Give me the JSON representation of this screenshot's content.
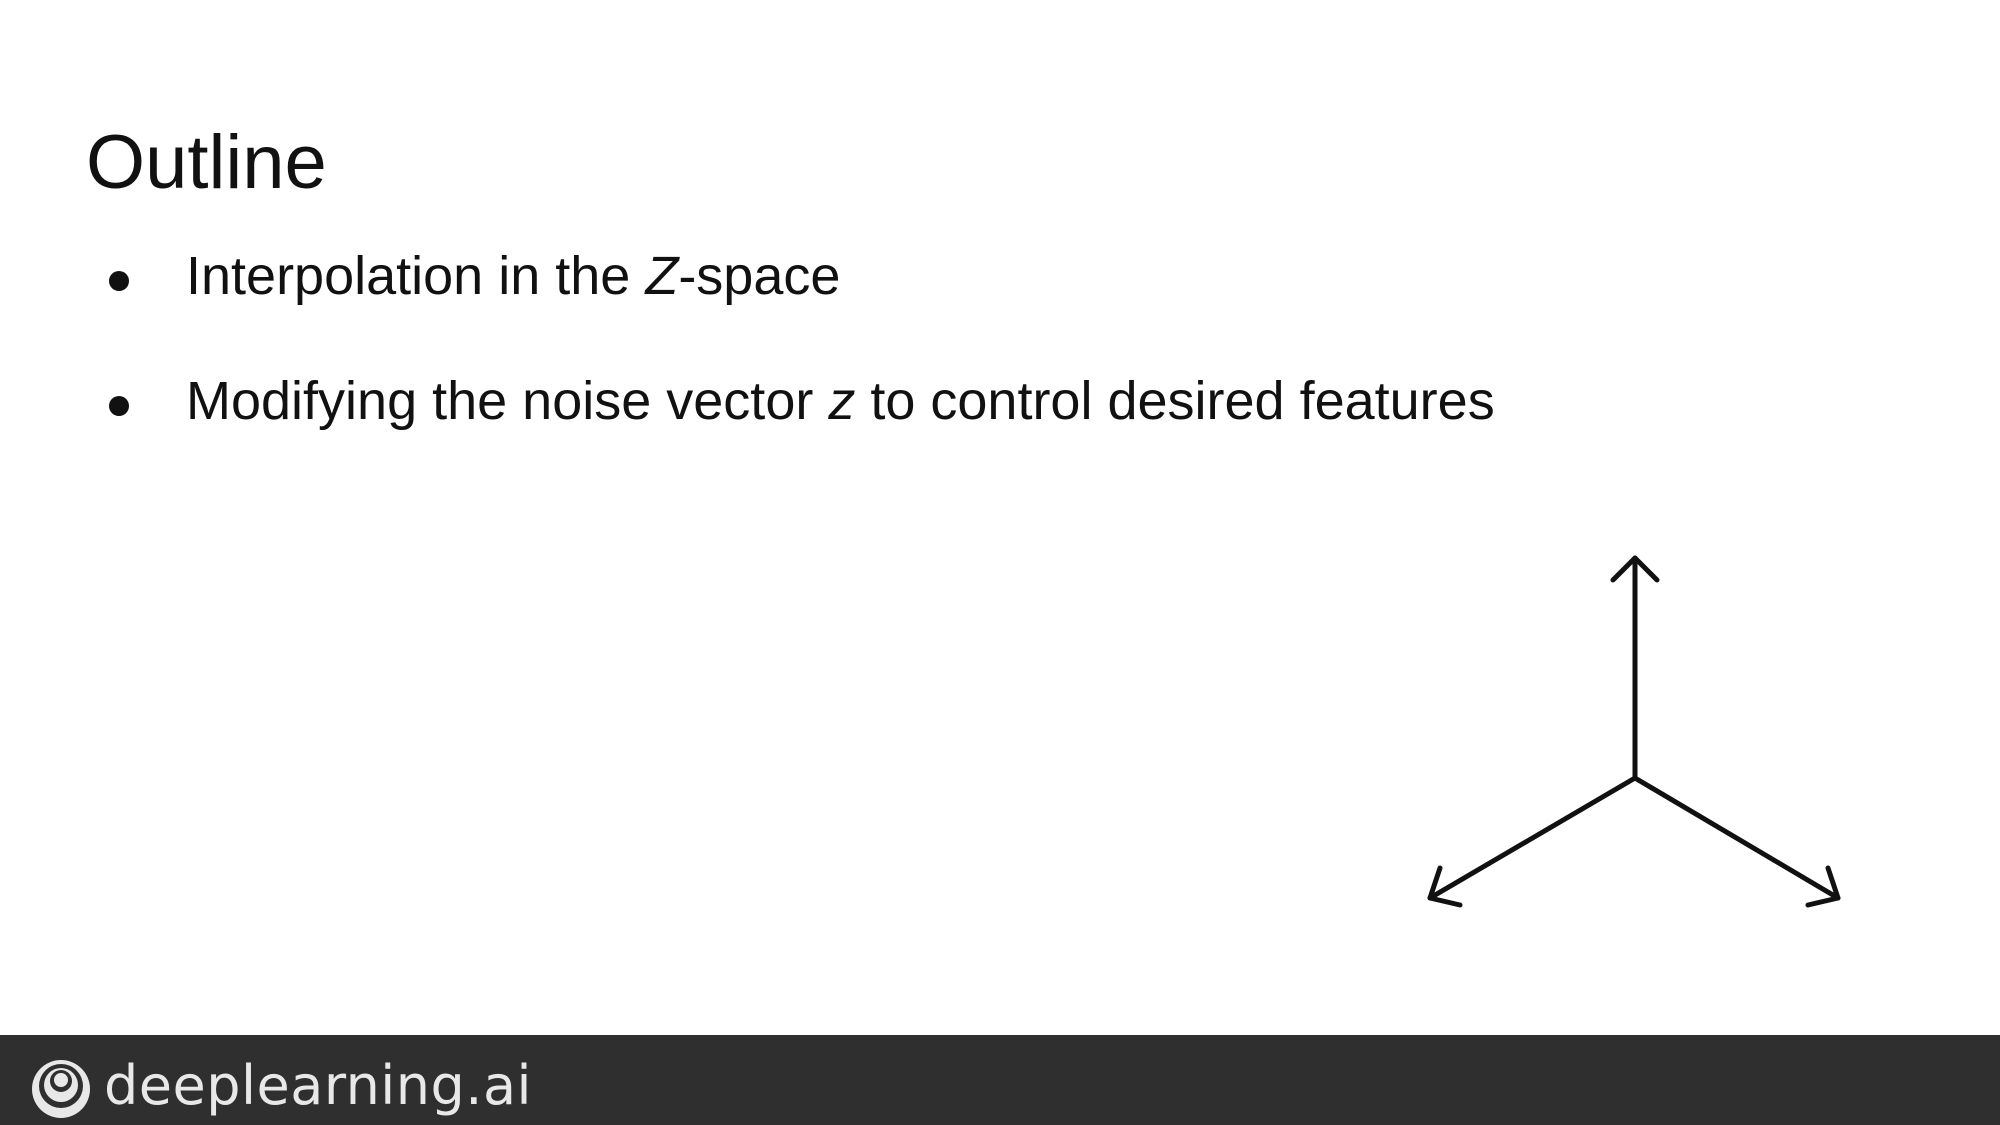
{
  "slide": {
    "title": "Outline",
    "bullets": [
      {
        "before": "Interpolation in the ",
        "italic": "Z",
        "after": "-space"
      },
      {
        "before": "Modifying the noise vector ",
        "italic": "z",
        "after": " to control desired features"
      }
    ]
  },
  "footer": {
    "brand": "deeplearning.ai",
    "background_color": "#2f2f2f",
    "text_color": "#e8e8e8"
  },
  "icons": {
    "axes": "three-axes-diagram-icon",
    "logo": "deeplearning-logo-icon"
  }
}
